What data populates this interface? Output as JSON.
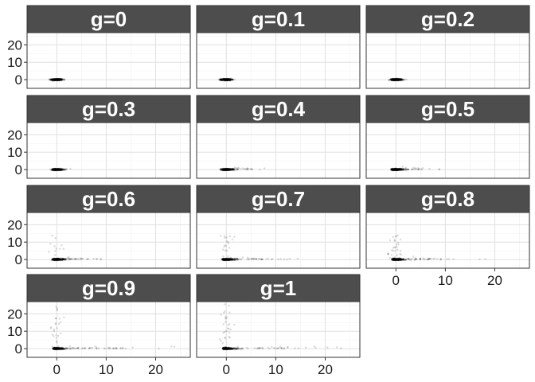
{
  "chart_data": {
    "type": "scatter",
    "layout": "facet_wrap 3 columns",
    "x_ticks": [
      0,
      10,
      20
    ],
    "y_ticks": [
      0,
      10,
      20
    ],
    "xlim": [
      -6,
      27
    ],
    "ylim": [
      -5,
      27
    ],
    "grid": true,
    "point_color": "#000000",
    "point_alpha": 0.15,
    "strip_color": "#4d4d4d",
    "strip_text_color": "#ffffff",
    "panels": [
      {
        "label": "g=0",
        "g": 0.0,
        "x_max": 1.6,
        "y_max": 0.9
      },
      {
        "label": "g=0.1",
        "g": 0.1,
        "x_max": 2.1,
        "y_max": 1.0
      },
      {
        "label": "g=0.2",
        "g": 0.2,
        "x_max": 2.8,
        "y_max": 1.3
      },
      {
        "label": "g=0.3",
        "g": 0.3,
        "x_max": 6.0,
        "y_max": 5.0
      },
      {
        "label": "g=0.4",
        "g": 0.4,
        "x_max": 11.0,
        "y_max": 9.0
      },
      {
        "label": "g=0.5",
        "g": 0.5,
        "x_max": 10.0,
        "y_max": 11.0
      },
      {
        "label": "g=0.6",
        "g": 0.6,
        "x_max": 9.5,
        "y_max": 14.0
      },
      {
        "label": "g=0.7",
        "g": 0.7,
        "x_max": 15.5,
        "y_max": 14.0
      },
      {
        "label": "g=0.8",
        "g": 0.8,
        "x_max": 20.0,
        "y_max": 14.0
      },
      {
        "label": "g=0.9",
        "g": 0.9,
        "x_max": 26.0,
        "y_max": 24.0
      },
      {
        "label": "g=1",
        "g": 1.0,
        "x_max": 24.0,
        "y_max": 26.0
      }
    ]
  }
}
